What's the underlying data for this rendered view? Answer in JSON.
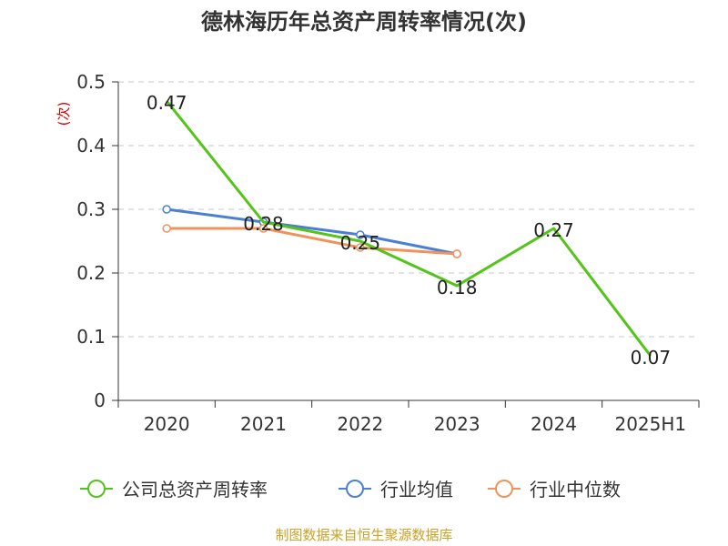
{
  "chart_data": {
    "type": "line",
    "title": "德林海历年总资产周转率情况(次)",
    "ylabel": "(次)",
    "xlabel": "",
    "categories": [
      "2020",
      "2021",
      "2022",
      "2023",
      "2024",
      "2025H1"
    ],
    "ylim": [
      0,
      0.5
    ],
    "yticks": [
      "0",
      "0.1",
      "0.2",
      "0.3",
      "0.4",
      "0.5"
    ],
    "grid": true,
    "legend_position": "bottom",
    "series": [
      {
        "name": "公司总资产周转率",
        "color": "#52c41a",
        "values": [
          0.47,
          0.28,
          0.25,
          0.18,
          0.27,
          0.07
        ],
        "labels": [
          "0.47",
          "0.28",
          "0.25",
          "0.18",
          "0.27",
          "0.07"
        ],
        "show_labels": true
      },
      {
        "name": "行业均值",
        "color": "#4a7fd4",
        "values": [
          0.3,
          0.28,
          0.26,
          0.23,
          null,
          null
        ],
        "show_labels": false
      },
      {
        "name": "行业中位数",
        "color": "#f0935a",
        "values": [
          0.27,
          0.27,
          0.24,
          0.23,
          null,
          null
        ],
        "show_labels": false
      }
    ]
  },
  "footer": {
    "source": "制图数据来自恒生聚源数据库"
  }
}
